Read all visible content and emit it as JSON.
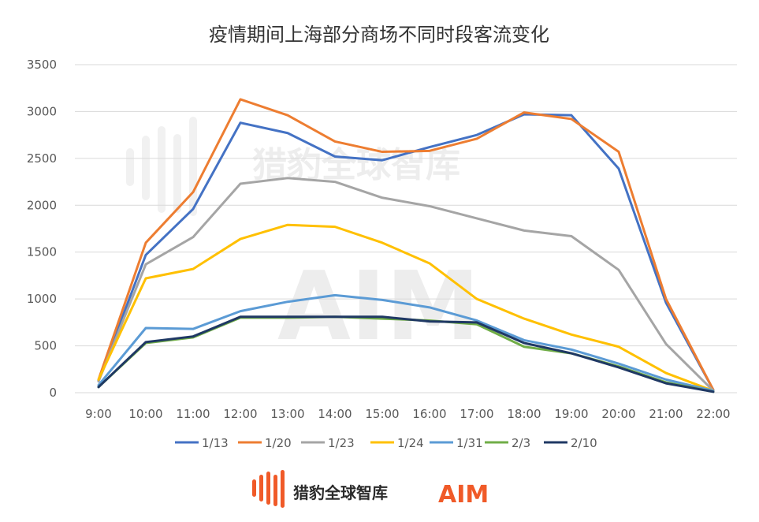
{
  "chart_data": {
    "type": "line",
    "title": "疫情期间上海部分商场不同时段客流变化",
    "categories": [
      "9:00",
      "10:00",
      "11:00",
      "12:00",
      "13:00",
      "14:00",
      "15:00",
      "16:00",
      "17:00",
      "18:00",
      "19:00",
      "20:00",
      "21:00",
      "22:00"
    ],
    "ylim": [
      0,
      3500
    ],
    "yticks": [
      0,
      500,
      1000,
      1500,
      2000,
      2500,
      3000,
      3500
    ],
    "grid": true,
    "legend_position": "bottom",
    "series": [
      {
        "name": "1/13",
        "color": "#4472c4",
        "values": [
          130,
          1470,
          1960,
          2880,
          2770,
          2520,
          2480,
          2620,
          2750,
          2970,
          2960,
          2390,
          960,
          30
        ]
      },
      {
        "name": "1/20",
        "color": "#ed7d31",
        "values": [
          140,
          1600,
          2140,
          3130,
          2960,
          2680,
          2570,
          2580,
          2710,
          2990,
          2920,
          2570,
          1000,
          30
        ]
      },
      {
        "name": "1/23",
        "color": "#a5a5a5",
        "values": [
          120,
          1370,
          1660,
          2230,
          2290,
          2250,
          2080,
          1990,
          1860,
          1730,
          1670,
          1310,
          520,
          20
        ]
      },
      {
        "name": "1/24",
        "color": "#ffc000",
        "values": [
          140,
          1220,
          1320,
          1640,
          1790,
          1770,
          1600,
          1380,
          1000,
          790,
          620,
          490,
          210,
          20
        ]
      },
      {
        "name": "1/31",
        "color": "#5b9bd5",
        "values": [
          80,
          690,
          680,
          870,
          970,
          1040,
          990,
          910,
          770,
          560,
          460,
          310,
          140,
          20
        ]
      },
      {
        "name": "2/3",
        "color": "#70ad47",
        "values": [
          60,
          530,
          590,
          800,
          800,
          810,
          790,
          770,
          730,
          490,
          420,
          280,
          110,
          10
        ]
      },
      {
        "name": "2/10",
        "color": "#1f3864",
        "values": [
          60,
          540,
          600,
          810,
          810,
          810,
          810,
          760,
          750,
          530,
          420,
          270,
          100,
          10
        ]
      }
    ]
  },
  "watermark": {
    "text": "猎豹全球智库",
    "logo": "AIM"
  },
  "footer": {
    "brand_text": "猎豹全球智库",
    "logo_text": "AIM",
    "brand_icon": "bars-logo-icon",
    "accent": "#f05a28"
  }
}
